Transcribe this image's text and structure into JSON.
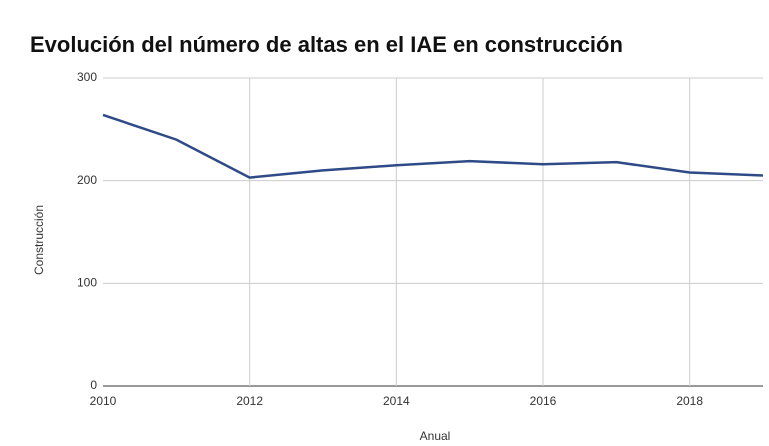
{
  "chart_data": {
    "type": "line",
    "title": "Evolución del número de altas en el IAE en construcción",
    "x_label": "Anual",
    "y_label": "Construcción",
    "x": [
      2010,
      2011,
      2012,
      2013,
      2014,
      2015,
      2016,
      2017,
      2018,
      2019
    ],
    "series": [
      {
        "name": "Construcción",
        "color": "#2f4b87",
        "values": [
          264,
          240,
          203,
          210,
          215,
          219,
          216,
          218,
          208,
          205
        ]
      }
    ],
    "xlim": [
      2010,
      2019
    ],
    "xticks": [
      2010,
      2012,
      2014,
      2016,
      2018
    ],
    "ylim": [
      0,
      300
    ],
    "yticks": [
      0,
      100,
      200,
      300
    ],
    "grid": true
  }
}
